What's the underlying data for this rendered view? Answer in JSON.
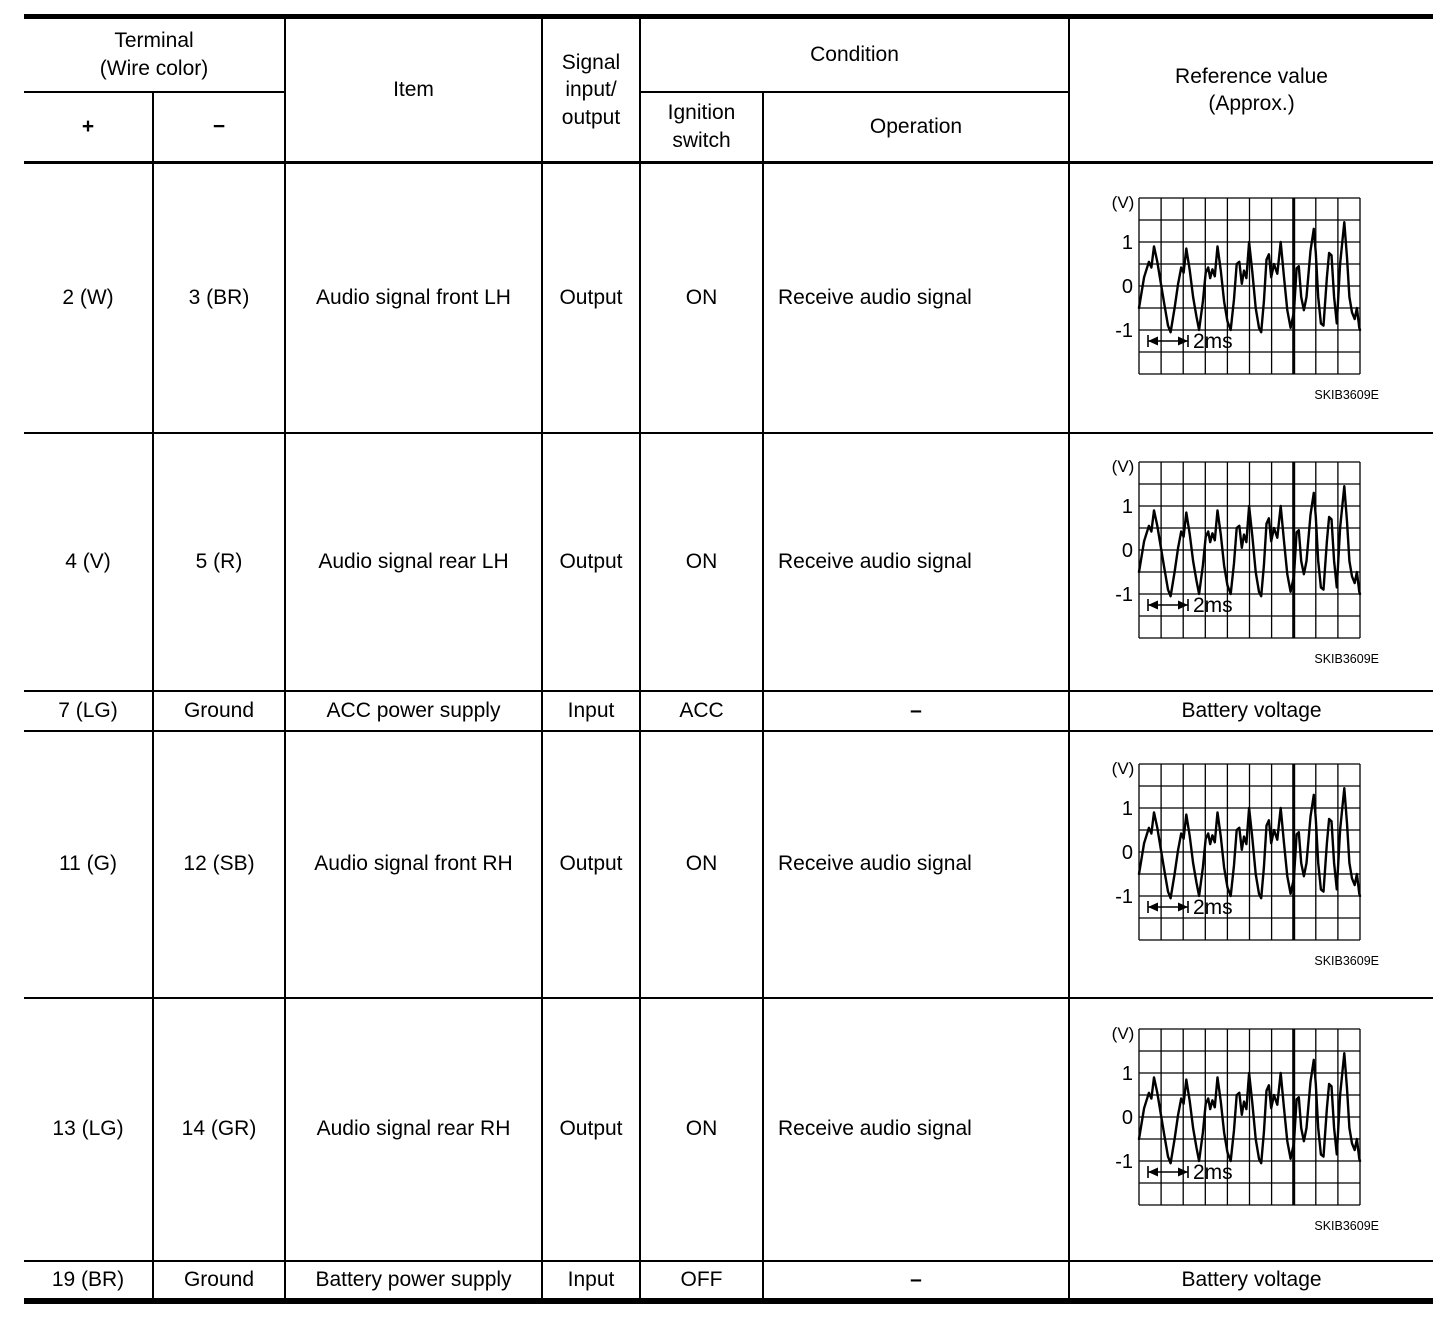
{
  "page": {
    "background": "#ffffff",
    "line_color": "#000000"
  },
  "table": {
    "header": {
      "terminal": "Terminal\n(Wire color)",
      "plus": "+",
      "minus": "−",
      "item": "Item",
      "signal_io": "Signal\ninput/\noutput",
      "condition": "Condition",
      "ignition_switch": "Ignition\nswitch",
      "operation": "Operation",
      "reference": "Reference value\n(Approx.)"
    },
    "rows": [
      {
        "plus": "2 (W)",
        "minus": "3 (BR)",
        "item": "Audio signal front LH",
        "signal": "Output",
        "ignition": "ON",
        "operation": "Receive audio signal",
        "reference": "waveform"
      },
      {
        "plus": "4 (V)",
        "minus": "5 (R)",
        "item": "Audio signal rear LH",
        "signal": "Output",
        "ignition": "ON",
        "operation": "Receive audio signal",
        "reference": "waveform"
      },
      {
        "plus": "7 (LG)",
        "minus": "Ground",
        "item": "ACC power supply",
        "signal": "Input",
        "ignition": "ACC",
        "operation": "–",
        "reference": "Battery voltage"
      },
      {
        "plus": "11 (G)",
        "minus": "12 (SB)",
        "item": "Audio signal front RH",
        "signal": "Output",
        "ignition": "ON",
        "operation": "Receive audio signal",
        "reference": "waveform"
      },
      {
        "plus": "13 (LG)",
        "minus": "14 (GR)",
        "item": "Audio signal rear RH",
        "signal": "Output",
        "ignition": "ON",
        "operation": "Receive audio signal",
        "reference": "waveform"
      },
      {
        "plus": "19 (BR)",
        "minus": "Ground",
        "item": "Battery power supply",
        "signal": "Input",
        "ignition": "OFF",
        "operation": "–",
        "reference": "Battery voltage"
      }
    ]
  },
  "chart_data": {
    "type": "line",
    "ylabel": "(V)",
    "yticks": [
      1,
      0,
      -1
    ],
    "volts_per_div": 0.5,
    "x_divisions": 10,
    "y_divisions": 8,
    "bold_grid_col": 7,
    "time_per_div_label": "2ms",
    "caption": "SKIB3609E",
    "points": [
      [
        0.0,
        -0.5
      ],
      [
        0.23,
        0.2
      ],
      [
        0.45,
        0.55
      ],
      [
        0.56,
        0.42
      ],
      [
        0.68,
        0.9
      ],
      [
        0.83,
        0.55
      ],
      [
        1.01,
        0.0
      ],
      [
        1.16,
        -0.45
      ],
      [
        1.31,
        -0.9
      ],
      [
        1.43,
        -1.05
      ],
      [
        1.61,
        -0.5
      ],
      [
        1.77,
        0.05
      ],
      [
        1.91,
        0.42
      ],
      [
        2.02,
        0.3
      ],
      [
        2.14,
        0.85
      ],
      [
        2.3,
        0.35
      ],
      [
        2.45,
        -0.25
      ],
      [
        2.6,
        -0.7
      ],
      [
        2.72,
        -1.0
      ],
      [
        2.89,
        -0.35
      ],
      [
        3.02,
        0.3
      ],
      [
        3.13,
        0.42
      ],
      [
        3.22,
        0.18
      ],
      [
        3.32,
        0.38
      ],
      [
        3.43,
        0.22
      ],
      [
        3.55,
        0.9
      ],
      [
        3.7,
        0.35
      ],
      [
        3.85,
        -0.35
      ],
      [
        4.0,
        -0.8
      ],
      [
        4.15,
        -1.0
      ],
      [
        4.3,
        -0.3
      ],
      [
        4.42,
        0.5
      ],
      [
        4.54,
        0.55
      ],
      [
        4.65,
        0.05
      ],
      [
        4.75,
        0.35
      ],
      [
        4.86,
        0.18
      ],
      [
        4.98,
        1.0
      ],
      [
        5.13,
        0.3
      ],
      [
        5.28,
        -0.5
      ],
      [
        5.43,
        -0.95
      ],
      [
        5.53,
        -1.05
      ],
      [
        5.65,
        -0.35
      ],
      [
        5.77,
        0.6
      ],
      [
        5.88,
        0.72
      ],
      [
        5.98,
        0.2
      ],
      [
        6.11,
        0.5
      ],
      [
        6.26,
        0.28
      ],
      [
        6.41,
        1.0
      ],
      [
        6.56,
        0.2
      ],
      [
        6.71,
        -0.55
      ],
      [
        6.86,
        -0.95
      ],
      [
        7.01,
        -0.6
      ],
      [
        7.13,
        0.4
      ],
      [
        7.23,
        0.45
      ],
      [
        7.34,
        -0.25
      ],
      [
        7.46,
        -0.55
      ],
      [
        7.58,
        -0.25
      ],
      [
        7.76,
        0.8
      ],
      [
        7.91,
        1.3
      ],
      [
        8.0,
        0.75
      ],
      [
        8.11,
        -0.25
      ],
      [
        8.23,
        -0.85
      ],
      [
        8.35,
        -0.9
      ],
      [
        8.5,
        0.2
      ],
      [
        8.6,
        0.75
      ],
      [
        8.71,
        0.7
      ],
      [
        8.83,
        -0.25
      ],
      [
        8.95,
        -0.85
      ],
      [
        9.1,
        0.5
      ],
      [
        9.2,
        1.0
      ],
      [
        9.29,
        1.45
      ],
      [
        9.41,
        0.65
      ],
      [
        9.52,
        -0.25
      ],
      [
        9.64,
        -0.6
      ],
      [
        9.76,
        -0.75
      ],
      [
        9.86,
        -0.5
      ],
      [
        9.97,
        -0.95
      ],
      [
        10.0,
        -1.0
      ]
    ]
  }
}
